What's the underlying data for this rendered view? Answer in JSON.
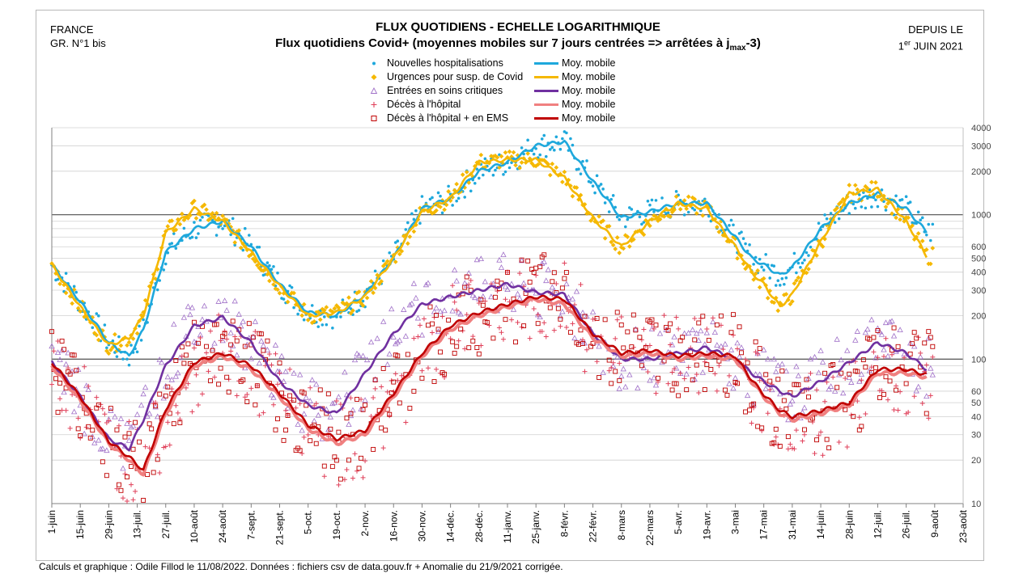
{
  "header": {
    "left_line1": "FRANCE",
    "left_line2": "GR. N°1 bis",
    "title": "FLUX QUOTIDIENS - ECHELLE LOGARITHMIQUE",
    "subtitle_main": "Flux quotidiens Covid+ (moyennes mobiles sur 7 jours centrées => arrêtées à j",
    "subtitle_sub": "max",
    "subtitle_end": "-3)",
    "right_line1": "DEPUIS LE",
    "right_line2_sup": "er",
    "right_line2_a": "1",
    "right_line2_b": " JUIN 2021"
  },
  "legend": {
    "items": [
      {
        "label": "Nouvelles hospitalisations",
        "marker": "dot",
        "color": "#1ea8dc",
        "line_label": "Moy. mobile",
        "line_color": "#1ea8dc"
      },
      {
        "label": "Urgences pour susp. de Covid",
        "marker": "diamond",
        "color": "#f5b800",
        "line_label": "Moy. mobile",
        "line_color": "#f5b800"
      },
      {
        "label": "Entrées en soins critiques",
        "marker": "triangle",
        "color": "#a070c8",
        "line_label": "Moy. mobile",
        "line_color": "#7030a0"
      },
      {
        "label": "Décès à l'hôpital",
        "marker": "plus",
        "color": "#e0405a",
        "line_label": "Moy. mobile",
        "line_color": "#f08080"
      },
      {
        "label": "Décès à l'hôpital + en EMS",
        "marker": "square",
        "color": "#c00000",
        "line_label": "Moy. mobile",
        "line_color": "#c00000"
      }
    ]
  },
  "footer": "Calculs et graphique : Odile Fillod le 11/08/2022. Données : fichiers csv de data.gouv.fr + Anomalie du 21/9/2021 corrigée.",
  "chart_data": {
    "type": "line",
    "scale": "log",
    "ylim": [
      10,
      4000
    ],
    "yticks": [
      10,
      20,
      30,
      40,
      50,
      60,
      100,
      200,
      300,
      400,
      500,
      600,
      1000,
      2000,
      3000,
      4000
    ],
    "xlim_days": [
      0,
      448
    ],
    "xticks": [
      {
        "day": 0,
        "label": "1-juin"
      },
      {
        "day": 14,
        "label": "15-juin"
      },
      {
        "day": 28,
        "label": "29-juin"
      },
      {
        "day": 42,
        "label": "13-juil."
      },
      {
        "day": 56,
        "label": "27-juil."
      },
      {
        "day": 70,
        "label": "10-août"
      },
      {
        "day": 84,
        "label": "24-août"
      },
      {
        "day": 98,
        "label": "7-sept."
      },
      {
        "day": 112,
        "label": "21-sept."
      },
      {
        "day": 126,
        "label": "5-oct."
      },
      {
        "day": 140,
        "label": "19-oct."
      },
      {
        "day": 154,
        "label": "2-nov."
      },
      {
        "day": 168,
        "label": "16-nov."
      },
      {
        "day": 182,
        "label": "30-nov."
      },
      {
        "day": 196,
        "label": "14-déc."
      },
      {
        "day": 210,
        "label": "28-déc."
      },
      {
        "day": 224,
        "label": "11-janv."
      },
      {
        "day": 238,
        "label": "25-janv."
      },
      {
        "day": 252,
        "label": "8-févr."
      },
      {
        "day": 266,
        "label": "22-févr."
      },
      {
        "day": 280,
        "label": "8-mars"
      },
      {
        "day": 294,
        "label": "22-mars"
      },
      {
        "day": 308,
        "label": "5-avr."
      },
      {
        "day": 322,
        "label": "19-avr."
      },
      {
        "day": 336,
        "label": "3-mai"
      },
      {
        "day": 350,
        "label": "17-mai"
      },
      {
        "day": 364,
        "label": "31-mai"
      },
      {
        "day": 378,
        "label": "14-juin"
      },
      {
        "day": 392,
        "label": "28-juin"
      },
      {
        "day": 406,
        "label": "12-juil."
      },
      {
        "day": 420,
        "label": "26-juil."
      },
      {
        "day": 434,
        "label": "9-août"
      },
      {
        "day": 448,
        "label": "23-août"
      }
    ],
    "series": [
      {
        "name": "Nouvelles hospitalisations (moy. mobile)",
        "color": "#1ea8dc",
        "x": [
          0,
          14,
          28,
          38,
          45,
          56,
          70,
          84,
          98,
          112,
          126,
          140,
          154,
          168,
          182,
          196,
          210,
          224,
          238,
          252,
          266,
          280,
          294,
          308,
          322,
          336,
          344,
          350,
          358,
          364,
          378,
          392,
          406,
          420,
          430
        ],
        "y": [
          450,
          250,
          130,
          105,
          160,
          550,
          800,
          900,
          600,
          330,
          210,
          200,
          280,
          500,
          1100,
          1300,
          2000,
          2300,
          3000,
          3200,
          1700,
          950,
          1050,
          1200,
          1200,
          700,
          500,
          450,
          380,
          430,
          800,
          1200,
          1400,
          1100,
          760
        ]
      },
      {
        "name": "Urgences pour susp. de Covid (moy. mobile)",
        "color": "#f5b800",
        "x": [
          0,
          14,
          28,
          38,
          45,
          56,
          70,
          84,
          98,
          112,
          126,
          140,
          154,
          168,
          182,
          196,
          210,
          224,
          238,
          252,
          266,
          280,
          294,
          308,
          322,
          336,
          344,
          350,
          358,
          364,
          378,
          392,
          406,
          420,
          430
        ],
        "y": [
          450,
          230,
          125,
          140,
          200,
          750,
          1100,
          900,
          550,
          320,
          200,
          210,
          270,
          500,
          1050,
          1300,
          2300,
          2400,
          2400,
          1800,
          950,
          600,
          900,
          1200,
          1100,
          600,
          400,
          330,
          230,
          280,
          650,
          1400,
          1500,
          900,
          520
        ]
      },
      {
        "name": "Entrées en soins critiques (moy. mobile)",
        "color": "#7030a0",
        "x": [
          0,
          14,
          28,
          38,
          45,
          56,
          70,
          84,
          98,
          112,
          126,
          140,
          154,
          168,
          182,
          196,
          210,
          224,
          238,
          252,
          266,
          280,
          294,
          308,
          322,
          336,
          344,
          350,
          358,
          364,
          378,
          392,
          406,
          420,
          430
        ],
        "y": [
          95,
          55,
          28,
          24,
          38,
          90,
          170,
          195,
          130,
          70,
          48,
          42,
          80,
          150,
          240,
          270,
          300,
          330,
          290,
          280,
          150,
          100,
          100,
          110,
          120,
          100,
          80,
          70,
          60,
          55,
          70,
          95,
          130,
          110,
          85
        ]
      },
      {
        "name": "Décès à l'hôpital (moy. mobile)",
        "color": "#f08080",
        "x": [
          0,
          14,
          28,
          38,
          45,
          56,
          70,
          84,
          98,
          112,
          126,
          140,
          154,
          168,
          182,
          196,
          210,
          224,
          238,
          252,
          266,
          280,
          294,
          308,
          322,
          336,
          344,
          350,
          358,
          364,
          378,
          392,
          406,
          420,
          430
        ],
        "y": [
          90,
          52,
          26,
          20,
          16,
          42,
          90,
          105,
          85,
          55,
          33,
          26,
          30,
          55,
          105,
          160,
          200,
          230,
          260,
          240,
          140,
          105,
          110,
          100,
          105,
          100,
          70,
          55,
          42,
          38,
          42,
          48,
          80,
          80,
          75
        ]
      },
      {
        "name": "Décès à l'hôpital + en EMS (moy. mobile)",
        "color": "#c00000",
        "x": [
          0,
          14,
          28,
          38,
          45,
          56,
          70,
          84,
          98,
          112,
          126,
          140,
          154,
          168,
          182,
          196,
          210,
          224,
          238,
          252,
          266,
          280,
          294,
          308,
          322,
          336,
          344,
          350,
          358,
          364,
          378,
          392,
          406,
          420,
          430
        ],
        "y": [
          95,
          55,
          27,
          21,
          17,
          45,
          95,
          110,
          90,
          58,
          35,
          28,
          32,
          58,
          110,
          170,
          210,
          240,
          270,
          260,
          150,
          110,
          115,
          105,
          110,
          105,
          72,
          57,
          44,
          40,
          44,
          50,
          85,
          85,
          78
        ]
      }
    ],
    "reference_lines": [
      100,
      1000
    ],
    "scatter_note": "Daily raw values scattered around each moving average"
  }
}
